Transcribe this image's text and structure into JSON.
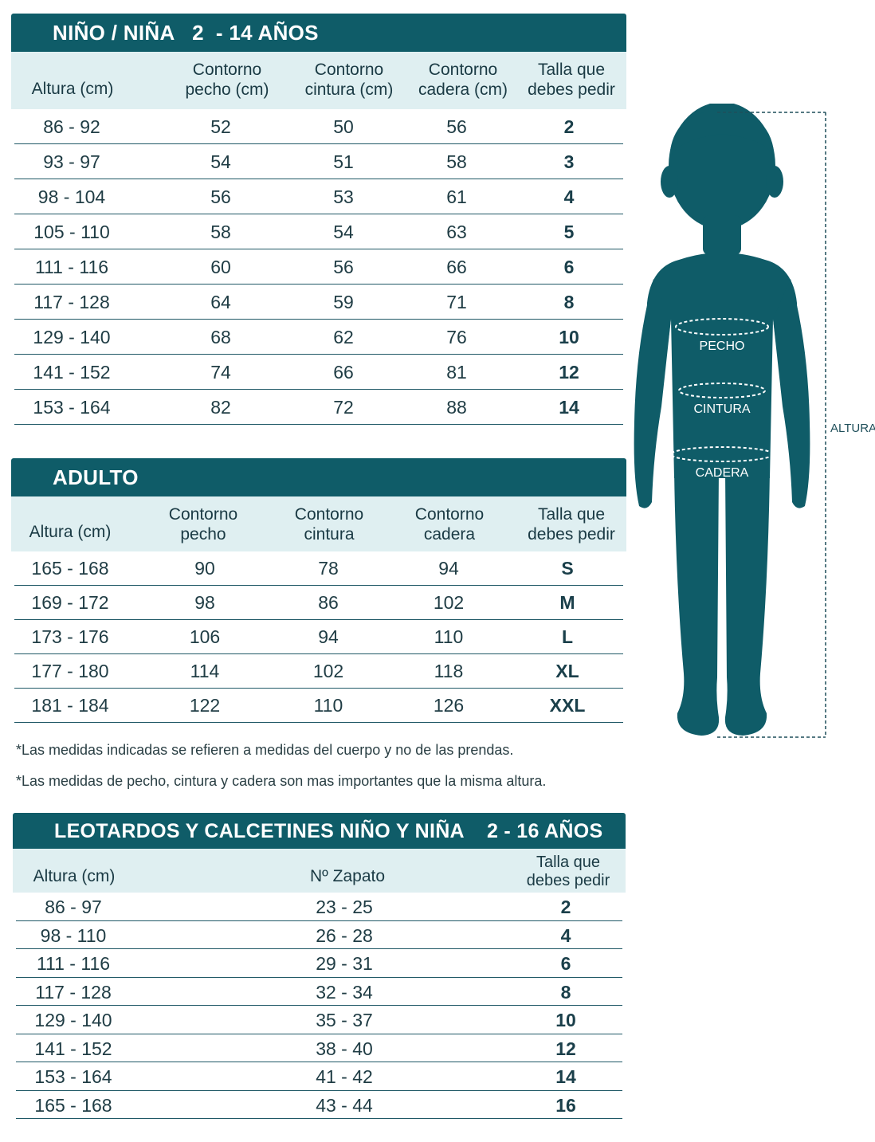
{
  "kids": {
    "title": "NIÑO / NIÑA   2  - 14 AÑOS",
    "headers": [
      "Altura (cm)",
      "Contorno\npecho (cm)",
      "Contorno\ncintura (cm)",
      "Contorno\ncadera (cm)",
      "Talla que\ndebes pedir"
    ],
    "rows": [
      [
        "86  -  92",
        "52",
        "50",
        "56",
        "2"
      ],
      [
        "93  -  97",
        "54",
        "51",
        "58",
        "3"
      ],
      [
        "98  -  104",
        "56",
        "53",
        "61",
        "4"
      ],
      [
        "105  -  110",
        "58",
        "54",
        "63",
        "5"
      ],
      [
        "111  -  116",
        "60",
        "56",
        "66",
        "6"
      ],
      [
        "117  -  128",
        "64",
        "59",
        "71",
        "8"
      ],
      [
        "129  -  140",
        "68",
        "62",
        "76",
        "10"
      ],
      [
        "141  -  152",
        "74",
        "66",
        "81",
        "12"
      ],
      [
        "153  -  164",
        "82",
        "72",
        "88",
        "14"
      ]
    ]
  },
  "adult": {
    "title": "ADULTO",
    "headers": [
      "Altura (cm)",
      "Contorno\npecho",
      "Contorno\ncintura",
      "Contorno\ncadera",
      "Talla que\ndebes pedir"
    ],
    "rows": [
      [
        "165  -  168",
        "90",
        "78",
        "94",
        "S"
      ],
      [
        "169  -  172",
        "98",
        "86",
        "102",
        "M"
      ],
      [
        "173  -  176",
        "106",
        "94",
        "110",
        "L"
      ],
      [
        "177  -  180",
        "114",
        "102",
        "118",
        "XL"
      ],
      [
        "181  -  184",
        "122",
        "110",
        "126",
        "XXL"
      ]
    ]
  },
  "notes": [
    "*Las medidas indicadas se refieren a medidas del cuerpo y no de las prendas.",
    "*Las medidas de pecho, cintura y cadera son mas importantes que la misma altura."
  ],
  "tights": {
    "title": "LEOTARDOS Y CALCETINES NIÑO Y NIÑA    2 - 16 AÑOS",
    "headers": [
      "Altura (cm)",
      "Nº Zapato",
      "Talla que\ndebes pedir"
    ],
    "rows": [
      [
        "86  -  97",
        "23  -  25",
        "2"
      ],
      [
        "98  -  110",
        "26  -  28",
        "4"
      ],
      [
        "111  -  116",
        "29  -  31",
        "6"
      ],
      [
        "117  -  128",
        "32  -  34",
        "8"
      ],
      [
        "129  -  140",
        "35  -  37",
        "10"
      ],
      [
        "141  -  152",
        "38  -  40",
        "12"
      ],
      [
        "153  -  164",
        "41  -  42",
        "14"
      ],
      [
        "165  -  168",
        "43  -  44",
        "16"
      ]
    ]
  },
  "figure": {
    "labels": {
      "chest": "PECHO",
      "waist": "CINTURA",
      "hip": "CADERA",
      "height": "ALTURA"
    },
    "color": "#0f5c68"
  },
  "colors": {
    "accent": "#0f5c68",
    "header_bg": "#dfeff1"
  }
}
